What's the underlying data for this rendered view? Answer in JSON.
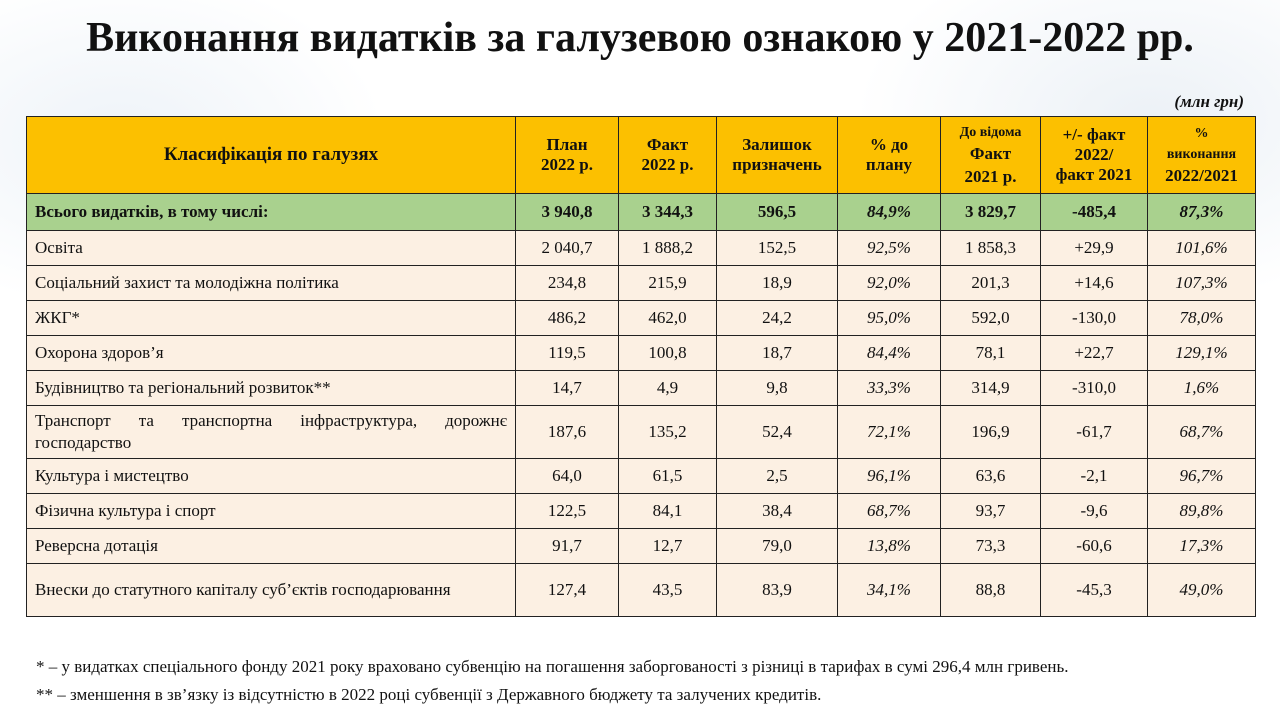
{
  "title": "Виконання видатків за галузевою ознакою у 2021-2022 рр.",
  "units": "(млн грн)",
  "headers": {
    "classification": "Класифікація по галузях",
    "plan_1": "План",
    "plan_2": "2022 р.",
    "fact_1": "Факт",
    "fact_2": "2022 р.",
    "rest_1": "Залишок",
    "rest_2": "призначень",
    "pct_1": "% до",
    "pct_2": "плану",
    "fact2021_1": "До відома",
    "fact2021_2": "Факт",
    "fact2021_3": "2021 р.",
    "diff_1": "+/- факт",
    "diff_2": "2022/",
    "diff_3": "факт 2021",
    "exec_1": "%",
    "exec_2": "виконання",
    "exec_3": "2022/2021"
  },
  "total": {
    "name": "Всього видатків, в тому числі:",
    "plan": "3 940,8",
    "fact": "3 344,3",
    "rest": "596,5",
    "pct": "84,9%",
    "fact2021": "3 829,7",
    "diff": "-485,4",
    "exec": "87,3%"
  },
  "rows": [
    {
      "name": "Освіта",
      "plan": "2 040,7",
      "fact": "1 888,2",
      "rest": "152,5",
      "pct": "92,5%",
      "fact2021": "1 858,3",
      "diff": "+29,9",
      "exec": "101,6%"
    },
    {
      "name": "Соціальний захист та молодіжна політика",
      "plan": "234,8",
      "fact": "215,9",
      "rest": "18,9",
      "pct": "92,0%",
      "fact2021": "201,3",
      "diff": "+14,6",
      "exec": "107,3%"
    },
    {
      "name": "ЖКГ*",
      "plan": "486,2",
      "fact": "462,0",
      "rest": "24,2",
      "pct": "95,0%",
      "fact2021": "592,0",
      "diff": "-130,0",
      "exec": "78,0%"
    },
    {
      "name": "Охорона здоров’я",
      "plan": "119,5",
      "fact": "100,8",
      "rest": "18,7",
      "pct": "84,4%",
      "fact2021": "78,1",
      "diff": "+22,7",
      "exec": "129,1%"
    },
    {
      "name": "Будівництво та регіональний розвиток**",
      "plan": "14,7",
      "fact": "4,9",
      "rest": "9,8",
      "pct": "33,3%",
      "fact2021": "314,9",
      "diff": "-310,0",
      "exec": "1,6%"
    },
    {
      "name": "Транспорт та транспортна інфраструктура, дорожнє господарство",
      "plan": "187,6",
      "fact": "135,2",
      "rest": "52,4",
      "pct": "72,1%",
      "fact2021": "196,9",
      "diff": "-61,7",
      "exec": "68,7%"
    },
    {
      "name": "Культура і мистецтво",
      "plan": "64,0",
      "fact": "61,5",
      "rest": "2,5",
      "pct": "96,1%",
      "fact2021": "63,6",
      "diff": "-2,1",
      "exec": "96,7%"
    },
    {
      "name": "Фізична культура і спорт",
      "plan": "122,5",
      "fact": "84,1",
      "rest": "38,4",
      "pct": "68,7%",
      "fact2021": "93,7",
      "diff": "-9,6",
      "exec": "89,8%"
    },
    {
      "name": "Реверсна дотація",
      "plan": "91,7",
      "fact": "12,7",
      "rest": "79,0",
      "pct": "13,8%",
      "fact2021": "73,3",
      "diff": "-60,6",
      "exec": "17,3%"
    },
    {
      "name": "Внески до статутного капіталу суб’єктів господарювання",
      "plan": "127,4",
      "fact": "43,5",
      "rest": "83,9",
      "pct": "34,1%",
      "fact2021": "88,8",
      "diff": "-45,3",
      "exec": "49,0%"
    }
  ],
  "notes": [
    "* – у видатках спеціального фонду 2021 року враховано субвенцію на погашення заборгованості з різниці в тарифах в сумі 296,4 млн гривень.",
    "** – зменшення в зв’язку із відсутністю в 2022 році субвенції з Державного бюджету та залучених кредитів."
  ]
}
